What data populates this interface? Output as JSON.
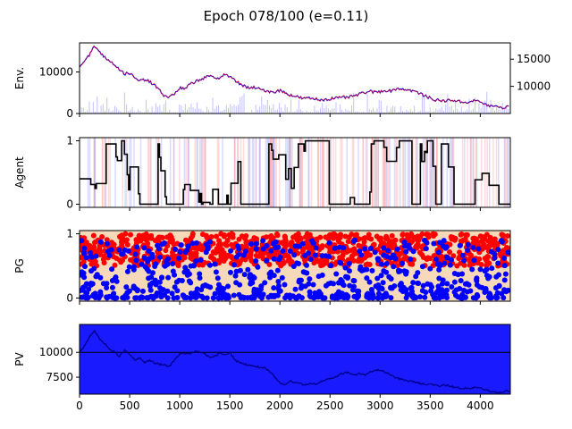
{
  "title": "Epoch 078/100 (e=0.11)",
  "colors": {
    "price": "#0000ff",
    "price_overlay": "#ff0000",
    "sell": "#ff0000",
    "buy": "#0000ff",
    "pv_fill": "#1a1aff",
    "pg_bg": "#f5d9b8",
    "agent": "#000000"
  },
  "chart_data": [
    {
      "type": "line",
      "name": "env",
      "ylabel": "Env.",
      "xlim": [
        0,
        4300
      ],
      "ylim": [
        0,
        17000
      ],
      "yticks": [
        0,
        10000
      ],
      "ytick_labels": [
        "0",
        "10000"
      ],
      "right_axis": {
        "ylim": [
          5000,
          18000
        ],
        "yticks": [
          10000,
          15000
        ],
        "ytick_labels": [
          "10000",
          "15000"
        ]
      },
      "x": [
        0,
        50,
        100,
        150,
        200,
        250,
        300,
        350,
        400,
        450,
        500,
        550,
        600,
        650,
        700,
        750,
        800,
        850,
        900,
        950,
        1000,
        1050,
        1100,
        1150,
        1200,
        1250,
        1300,
        1350,
        1400,
        1450,
        1500,
        1550,
        1600,
        1650,
        1700,
        1750,
        1800,
        1850,
        1900,
        1950,
        2000,
        2050,
        2100,
        2150,
        2200,
        2250,
        2300,
        2350,
        2400,
        2450,
        2500,
        2550,
        2600,
        2650,
        2700,
        2750,
        2800,
        2850,
        2900,
        2950,
        3000,
        3050,
        3100,
        3150,
        3200,
        3250,
        3300,
        3350,
        3400,
        3450,
        3500,
        3550,
        3600,
        3650,
        3700,
        3750,
        3800,
        3850,
        3900,
        3950,
        4000,
        4050,
        4100,
        4150,
        4200,
        4250,
        4290
      ],
      "values": [
        11500,
        12800,
        14200,
        16200,
        15000,
        13500,
        12800,
        11800,
        10600,
        9500,
        9800,
        8500,
        7800,
        8200,
        7600,
        6800,
        5500,
        4200,
        4000,
        4800,
        6200,
        5800,
        7000,
        7600,
        8200,
        8600,
        9000,
        8500,
        8700,
        9500,
        8800,
        8000,
        7200,
        6500,
        6000,
        6300,
        5800,
        5600,
        5300,
        5200,
        5600,
        5000,
        4500,
        4200,
        3800,
        3600,
        3700,
        3500,
        3300,
        3400,
        3500,
        3800,
        3700,
        3900,
        4000,
        4300,
        4700,
        5100,
        5300,
        5100,
        5300,
        5600,
        5400,
        5900,
        6000,
        5800,
        5600,
        5300,
        4800,
        4200,
        3700,
        3300,
        3100,
        3000,
        3300,
        3100,
        2800,
        2700,
        2900,
        3100,
        2800,
        2200,
        1800,
        1700,
        1500,
        1300,
        2100
      ]
    },
    {
      "type": "line",
      "name": "agent",
      "ylabel": "Agent",
      "xlim": [
        0,
        4300
      ],
      "ylim": [
        -0.05,
        1.05
      ],
      "yticks": [
        0,
        1
      ],
      "ytick_labels": [
        "0",
        "1"
      ]
    },
    {
      "type": "scatter",
      "name": "pg",
      "ylabel": "PG",
      "xlim": [
        0,
        4300
      ],
      "ylim": [
        -0.05,
        1.05
      ],
      "yticks": [
        0,
        1
      ],
      "ytick_labels": [
        "0",
        "1"
      ],
      "series": [
        {
          "color": "#ff0000",
          "x_range": [
            0,
            4290
          ],
          "y_range": [
            0.5,
            1.0
          ]
        },
        {
          "color": "#0000ff",
          "x_range": [
            0,
            4290
          ],
          "y_range": [
            0.0,
            0.5
          ]
        }
      ]
    },
    {
      "type": "area",
      "name": "pv",
      "ylabel": "PV",
      "xlim": [
        0,
        4300
      ],
      "ylim": [
        5800,
        12800
      ],
      "yticks": [
        7500,
        10000
      ],
      "ytick_labels": [
        "7500",
        "10000"
      ],
      "hline": 10000,
      "xticks": [
        0,
        500,
        1000,
        1500,
        2000,
        2500,
        3000,
        3500,
        4000
      ],
      "xtick_labels": [
        "0",
        "500",
        "1000",
        "1500",
        "2000",
        "2500",
        "3000",
        "3500",
        "4000"
      ],
      "x": [
        0,
        50,
        100,
        150,
        200,
        250,
        300,
        350,
        400,
        450,
        500,
        550,
        600,
        650,
        700,
        750,
        800,
        850,
        900,
        950,
        1000,
        1050,
        1100,
        1150,
        1200,
        1250,
        1300,
        1350,
        1400,
        1450,
        1500,
        1550,
        1600,
        1650,
        1700,
        1750,
        1800,
        1850,
        1900,
        1950,
        2000,
        2050,
        2100,
        2150,
        2200,
        2250,
        2300,
        2350,
        2400,
        2450,
        2500,
        2550,
        2600,
        2650,
        2700,
        2750,
        2800,
        2850,
        2900,
        2950,
        3000,
        3050,
        3100,
        3150,
        3200,
        3250,
        3300,
        3350,
        3400,
        3450,
        3500,
        3550,
        3600,
        3650,
        3700,
        3750,
        3800,
        3850,
        3900,
        3950,
        4000,
        4050,
        4100,
        4150,
        4200,
        4250,
        4290
      ],
      "values": [
        10000,
        10600,
        11600,
        12200,
        11300,
        10900,
        10300,
        10000,
        9600,
        10200,
        9800,
        9200,
        9400,
        9000,
        9200,
        8900,
        8800,
        8700,
        8600,
        9300,
        9800,
        9900,
        9800,
        10100,
        10000,
        9900,
        9400,
        9600,
        9900,
        9800,
        10000,
        9200,
        9000,
        8800,
        8700,
        8600,
        8500,
        8400,
        8000,
        7500,
        6900,
        6800,
        7100,
        7000,
        6900,
        6700,
        6900,
        6800,
        7000,
        7200,
        7300,
        7500,
        7800,
        8000,
        7900,
        7700,
        7900,
        7700,
        8000,
        8200,
        8200,
        8000,
        7800,
        7500,
        7300,
        7200,
        7100,
        7000,
        6900,
        6800,
        6800,
        6700,
        6600,
        6700,
        6600,
        6500,
        6400,
        6400,
        6300,
        6500,
        6400,
        6200,
        6100,
        6000,
        6000,
        6100,
        6100
      ]
    }
  ]
}
